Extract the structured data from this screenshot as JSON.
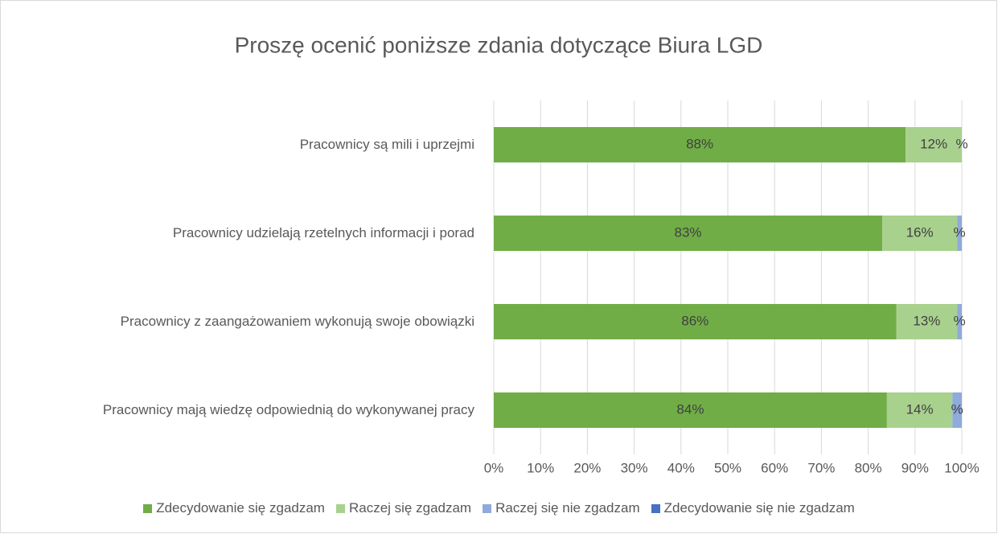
{
  "chart_data": {
    "type": "stacked_barh",
    "title": "Proszę ocenić poniższe zdania dotyczące Biura LGD",
    "categories": [
      "Pracownicy są mili i uprzejmi",
      "Pracownicy udzielają rzetelnych informacji i porad",
      "Pracownicy z zaangażowaniem wykonują swoje obowiązki",
      "Pracownicy mają wiedzę odpowiednią do wykonywanej pracy"
    ],
    "series": [
      {
        "name": "Zdecydowanie się zgadzam",
        "color": "#70ad47",
        "values": [
          88,
          83,
          86,
          84
        ],
        "value_labels": [
          "88%",
          "83%",
          "86%",
          "84%"
        ]
      },
      {
        "name": "Raczej się zgadzam",
        "color": "#a9d18e",
        "values": [
          12,
          16,
          13,
          14
        ],
        "value_labels": [
          "12%",
          "16%",
          "13%",
          "14%"
        ]
      },
      {
        "name": "Raczej się nie zgadzam",
        "color": "#8faadc",
        "values": [
          0,
          1,
          1,
          2
        ],
        "value_labels": [
          "%",
          "%",
          "%",
          "%"
        ]
      },
      {
        "name": "Zdecydowanie się nie zgadzam",
        "color": "#4472c4",
        "values": [
          0,
          0,
          0,
          0
        ]
      }
    ],
    "xlim": [
      0,
      100
    ],
    "xticks": [
      {
        "value": 0,
        "label": "0%"
      },
      {
        "value": 10,
        "label": "10%"
      },
      {
        "value": 20,
        "label": "20%"
      },
      {
        "value": 30,
        "label": "30%"
      },
      {
        "value": 40,
        "label": "40%"
      },
      {
        "value": 50,
        "label": "50%"
      },
      {
        "value": 60,
        "label": "60%"
      },
      {
        "value": 70,
        "label": "70%"
      },
      {
        "value": 80,
        "label": "80%"
      },
      {
        "value": 90,
        "label": "90%"
      },
      {
        "value": 100,
        "label": "100%"
      }
    ],
    "grid": true,
    "legend": "bottom"
  }
}
